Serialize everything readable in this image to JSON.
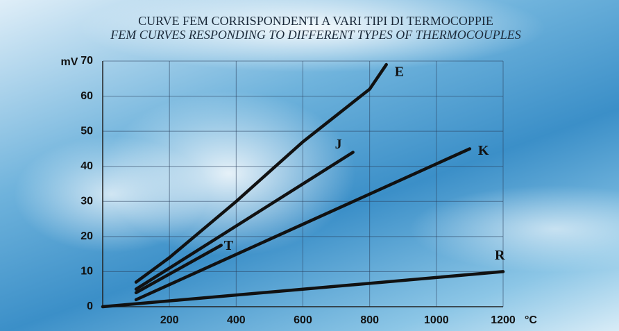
{
  "chart_data": {
    "type": "line",
    "title": "CURVE FEM CORRISPONDENTI A VARI TIPI DI TERMOCOPPIE",
    "subtitle": "FEM CURVES RESPONDING TO DIFFERENT TYPES OF THERMOCOUPLES",
    "y_label": "mV",
    "x_label": "°C",
    "xlim": [
      0,
      1200
    ],
    "xticks": [
      200,
      400,
      600,
      800,
      1000,
      1200
    ],
    "ylim": [
      0,
      70
    ],
    "yticks": [
      0,
      10,
      20,
      30,
      40,
      50,
      60,
      70
    ],
    "grid": true,
    "series": [
      {
        "name": "E",
        "color": "#111111",
        "x": [
          100,
          200,
          400,
          600,
          800,
          850
        ],
        "values": [
          7,
          14,
          30,
          47,
          62,
          69
        ]
      },
      {
        "name": "J",
        "color": "#111111",
        "x": [
          100,
          750
        ],
        "values": [
          5,
          44
        ]
      },
      {
        "name": "T",
        "color": "#111111",
        "x": [
          100,
          355
        ],
        "values": [
          4,
          17.5
        ]
      },
      {
        "name": "K",
        "color": "#111111",
        "x": [
          100,
          1100
        ],
        "values": [
          2,
          45
        ]
      },
      {
        "name": "R",
        "color": "#111111",
        "x": [
          0,
          1200
        ],
        "values": [
          0,
          10
        ]
      }
    ]
  }
}
